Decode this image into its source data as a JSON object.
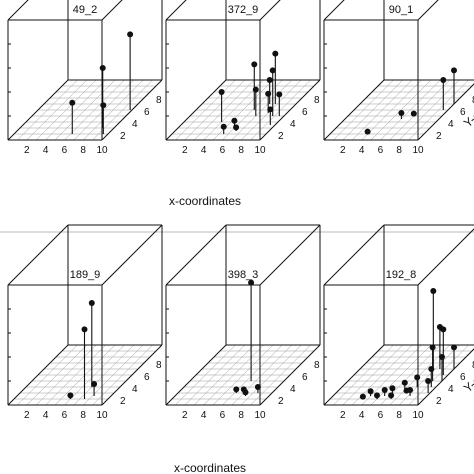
{
  "labels": {
    "x_axis_caption_top": "x-coordinates",
    "x_axis_caption_bottom": "x-coordinates"
  },
  "colors": {
    "line": "#111111",
    "grid": "#999999",
    "separator": "#bbbbbb",
    "background": "#ffffff"
  },
  "chart_data": [
    {
      "type": "scatter",
      "title": "49_2",
      "x_ticks": [
        "2",
        "4",
        "6",
        "8",
        "10"
      ],
      "y_ticks": [
        "2",
        "4",
        "6",
        "8"
      ],
      "y_label": "",
      "xlim": [
        0,
        10
      ],
      "ylim": [
        0,
        10
      ],
      "zlim": [
        0,
        10
      ],
      "points": [
        {
          "x": 6.2,
          "y": 1.0,
          "z": 2.6
        },
        {
          "x": 8.8,
          "y": 2.0,
          "z": 5.0
        },
        {
          "x": 9.8,
          "y": 5.0,
          "z": 6.3
        },
        {
          "x": 9.5,
          "y": 1.0,
          "z": 2.4
        }
      ]
    },
    {
      "type": "scatter",
      "title": "372_9",
      "x_ticks": [
        "2",
        "4",
        "6",
        "8",
        "10"
      ],
      "y_ticks": [
        "2",
        "4",
        "6",
        "8"
      ],
      "y_label": "",
      "xlim": [
        0,
        10
      ],
      "ylim": [
        0,
        10
      ],
      "zlim": [
        0,
        10
      ],
      "points": [
        {
          "x": 4.0,
          "y": 3.0,
          "z": 2.5
        },
        {
          "x": 6.0,
          "y": 2.0,
          "z": 0.6
        },
        {
          "x": 6.5,
          "y": 1.5,
          "z": 0.3
        },
        {
          "x": 5.5,
          "y": 1.0,
          "z": 0.6
        },
        {
          "x": 6.2,
          "y": 5.0,
          "z": 3.8
        },
        {
          "x": 7.0,
          "y": 4.0,
          "z": 2.2
        },
        {
          "x": 7.2,
          "y": 6.0,
          "z": 2.0
        },
        {
          "x": 7.8,
          "y": 6.0,
          "z": 4.2
        },
        {
          "x": 8.0,
          "y": 4.5,
          "z": 1.6
        },
        {
          "x": 8.8,
          "y": 4.0,
          "z": 3.8
        },
        {
          "x": 9.5,
          "y": 2.5,
          "z": 1.3
        },
        {
          "x": 9.5,
          "y": 4.0,
          "z": 1.8
        }
      ]
    },
    {
      "type": "scatter",
      "title": "90_1",
      "x_ticks": [
        "2",
        "4",
        "6",
        "8",
        "10"
      ],
      "y_ticks": [
        "2",
        "4",
        "6",
        "8"
      ],
      "y_label": "Y-coor",
      "xlim": [
        0,
        10
      ],
      "ylim": [
        0,
        10
      ],
      "zlim": [
        0,
        10
      ],
      "points": [
        {
          "x": 4.0,
          "y": 1.0,
          "z": 0.2
        },
        {
          "x": 6.0,
          "y": 3.5,
          "z": 0.5
        },
        {
          "x": 7.0,
          "y": 4.0,
          "z": 0.2
        },
        {
          "x": 9.5,
          "y": 5.0,
          "z": 2.5
        },
        {
          "x": 10.0,
          "y": 6.0,
          "z": 2.8
        }
      ]
    },
    {
      "type": "scatter",
      "title": "189_9",
      "x_ticks": [
        "2",
        "4",
        "6",
        "8",
        "10"
      ],
      "y_ticks": [
        "2",
        "4",
        "6",
        "8"
      ],
      "y_label": "",
      "xlim": [
        0,
        10
      ],
      "ylim": [
        0,
        10
      ],
      "zlim": [
        0,
        10
      ],
      "points": [
        {
          "x": 6.0,
          "y": 1.0,
          "z": 0.3
        },
        {
          "x": 7.0,
          "y": 3.0,
          "z": 7.0
        },
        {
          "x": 7.5,
          "y": 1.0,
          "z": 5.8
        },
        {
          "x": 8.2,
          "y": 1.5,
          "z": 1.0
        }
      ]
    },
    {
      "type": "scatter",
      "title": "398_3",
      "x_ticks": [
        "2",
        "4",
        "6",
        "8",
        "10"
      ],
      "y_ticks": [
        "2",
        "4",
        "6",
        "8"
      ],
      "y_label": "",
      "xlim": [
        0,
        10
      ],
      "ylim": [
        0,
        10
      ],
      "zlim": [
        0,
        10
      ],
      "points": [
        {
          "x": 6.5,
          "y": 4.0,
          "z": 8.2
        },
        {
          "x": 6.2,
          "y": 2.0,
          "z": 0.3
        },
        {
          "x": 7.0,
          "y": 2.0,
          "z": 0.3
        },
        {
          "x": 7.5,
          "y": 1.5,
          "z": 0.3
        },
        {
          "x": 8.5,
          "y": 2.0,
          "z": 0.5
        }
      ]
    },
    {
      "type": "scatter",
      "title": "192_8",
      "x_ticks": [
        "2",
        "4",
        "6",
        "8",
        "10"
      ],
      "y_ticks": [
        "2",
        "4",
        "6",
        "8"
      ],
      "y_label": "Y-coor",
      "xlim": [
        0,
        10
      ],
      "ylim": [
        0,
        10
      ],
      "zlim": [
        0,
        10
      ],
      "points": [
        {
          "x": 3.5,
          "y": 1.0,
          "z": 0.2
        },
        {
          "x": 4.0,
          "y": 1.5,
          "z": 0.4
        },
        {
          "x": 5.0,
          "y": 1.0,
          "z": 0.3
        },
        {
          "x": 5.5,
          "y": 1.5,
          "z": 0.5
        },
        {
          "x": 6.0,
          "y": 2.0,
          "z": 0.4
        },
        {
          "x": 6.5,
          "y": 1.0,
          "z": 0.3
        },
        {
          "x": 7.0,
          "y": 2.5,
          "z": 0.6
        },
        {
          "x": 7.5,
          "y": 2.0,
          "z": 0.2
        },
        {
          "x": 8.0,
          "y": 3.0,
          "z": 0.8
        },
        {
          "x": 8.2,
          "y": 1.5,
          "z": 0.5
        },
        {
          "x": 7.8,
          "y": 6.0,
          "z": 6.5
        },
        {
          "x": 8.5,
          "y": 6.0,
          "z": 3.5
        },
        {
          "x": 9.0,
          "y": 4.0,
          "z": 2.8
        },
        {
          "x": 9.5,
          "y": 5.0,
          "z": 3.8
        },
        {
          "x": 9.5,
          "y": 3.0,
          "z": 1.5
        },
        {
          "x": 10.0,
          "y": 4.0,
          "z": 2.0
        },
        {
          "x": 9.8,
          "y": 2.0,
          "z": 1.0
        },
        {
          "x": 10.0,
          "y": 6.0,
          "z": 1.8
        }
      ]
    }
  ]
}
